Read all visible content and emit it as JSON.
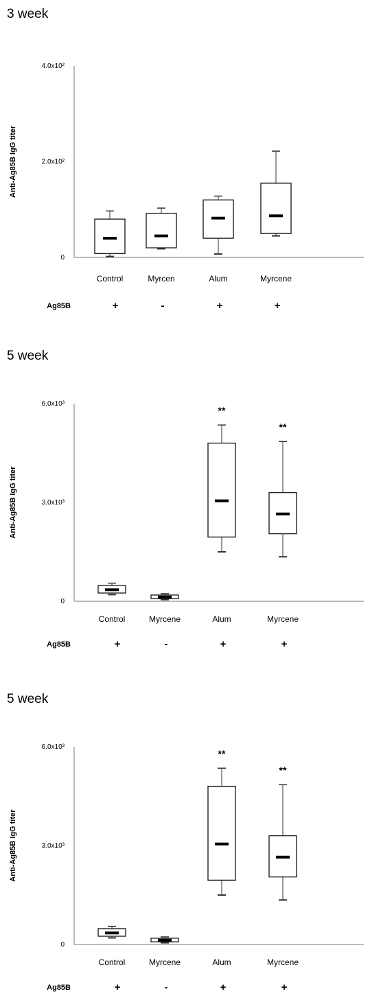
{
  "chart_data": [
    {
      "type": "box",
      "title": "3 week",
      "ylabel": "Anti-Ag85B IgG titer",
      "ylim": [
        0,
        400
      ],
      "yticks": [
        {
          "value": 0,
          "label": "0"
        },
        {
          "value": 200,
          "label": "2.0x10²"
        },
        {
          "value": 400,
          "label": "4.0x10²"
        }
      ],
      "categories": [
        "Control",
        "Myrcen",
        "Alum",
        "Myrcene"
      ],
      "boxes": [
        {
          "min": 2,
          "q1": 8,
          "median": 40,
          "q3": 80,
          "max": 97
        },
        {
          "min": 18,
          "q1": 20,
          "median": 45,
          "q3": 92,
          "max": 103
        },
        {
          "min": 7,
          "q1": 40,
          "median": 82,
          "q3": 120,
          "max": 128
        },
        {
          "min": 45,
          "q1": 50,
          "median": 87,
          "q3": 155,
          "max": 222
        }
      ],
      "annotations": [
        "",
        "",
        "",
        ""
      ],
      "ag_label": "Ag85B",
      "ag_signs": [
        "+",
        "-",
        "+",
        "+"
      ]
    },
    {
      "type": "box",
      "title": "5 week",
      "ylabel": "Anti-Ag85B IgG titer",
      "ylim": [
        0,
        6000
      ],
      "yticks": [
        {
          "value": 0,
          "label": "0"
        },
        {
          "value": 3000,
          "label": "3.0x10³"
        },
        {
          "value": 6000,
          "label": "6.0x10³"
        }
      ],
      "categories": [
        "Control",
        "Myrcene",
        "Alum",
        "Myrcene"
      ],
      "boxes": [
        {
          "min": 200,
          "q1": 250,
          "median": 350,
          "q3": 480,
          "max": 550
        },
        {
          "min": 50,
          "q1": 80,
          "median": 130,
          "q3": 190,
          "max": 230
        },
        {
          "min": 1500,
          "q1": 1950,
          "median": 3050,
          "q3": 4800,
          "max": 5350
        },
        {
          "min": 1350,
          "q1": 2050,
          "median": 2650,
          "q3": 3300,
          "max": 4850
        }
      ],
      "annotations": [
        "",
        "",
        "**",
        "**"
      ],
      "ag_label": "Ag85B",
      "ag_signs": [
        "+",
        "-",
        "+",
        "+"
      ]
    },
    {
      "type": "box",
      "title": "5 week",
      "ylabel": "Anti-Ag85B IgG titer",
      "ylim": [
        0,
        6000
      ],
      "yticks": [
        {
          "value": 0,
          "label": "0"
        },
        {
          "value": 3000,
          "label": "3.0x10³"
        },
        {
          "value": 6000,
          "label": "6.0x10³"
        }
      ],
      "categories": [
        "Control",
        "Myrcene",
        "Alum",
        "Myrcene"
      ],
      "boxes": [
        {
          "min": 200,
          "q1": 250,
          "median": 350,
          "q3": 480,
          "max": 550
        },
        {
          "min": 50,
          "q1": 80,
          "median": 130,
          "q3": 190,
          "max": 230
        },
        {
          "min": 1500,
          "q1": 1950,
          "median": 3050,
          "q3": 4800,
          "max": 5350
        },
        {
          "min": 1350,
          "q1": 2050,
          "median": 2650,
          "q3": 3300,
          "max": 4850
        }
      ],
      "annotations": [
        "",
        "",
        "**",
        "**"
      ],
      "ag_label": "Ag85B",
      "ag_signs": [
        "+",
        "-",
        "+",
        "+"
      ]
    }
  ]
}
